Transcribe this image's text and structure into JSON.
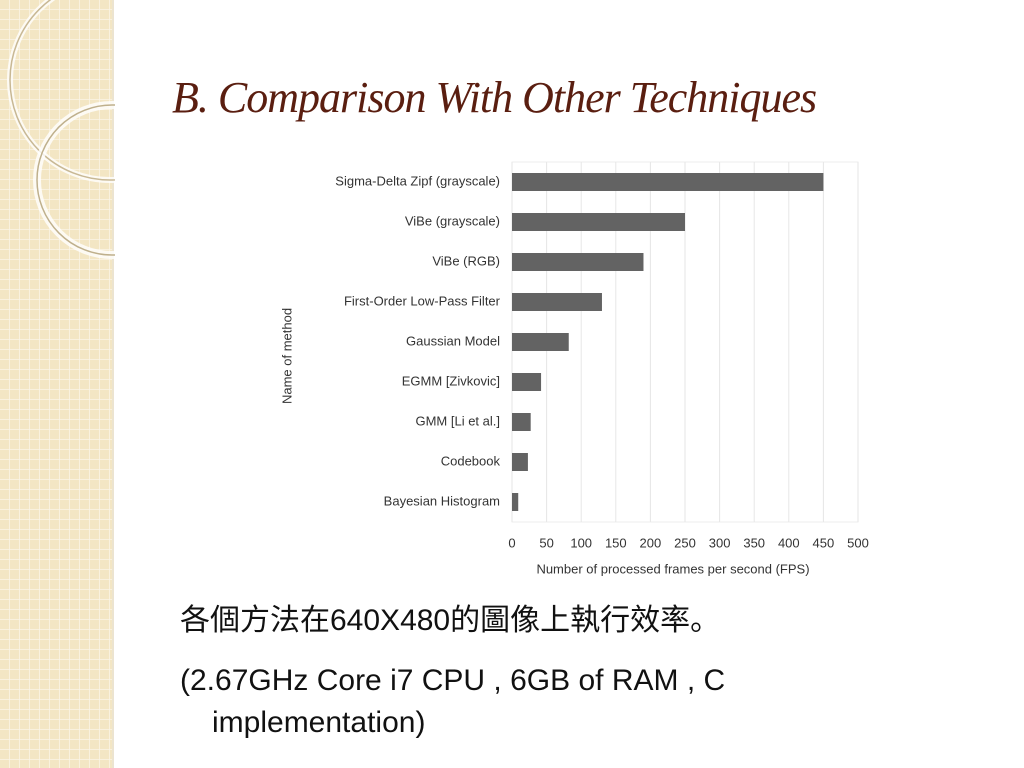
{
  "slide": {
    "title": "B. Comparison With Other Techniques",
    "lines": [
      "各個方法在640X480的圖像上執行效率。",
      "(2.67GHz Core i7 CPU , 6GB of RAM , C implementation)"
    ]
  },
  "chart_data": {
    "type": "hbar",
    "x_label": "Number of processed frames per second (FPS)",
    "y_label": "Name of method",
    "categories": [
      "Sigma-Delta Zipf (grayscale)",
      "ViBe (grayscale)",
      "ViBe (RGB)",
      "First-Order Low-Pass Filter",
      "Gaussian Model",
      "EGMM [Zivkovic]",
      "GMM [Li et al.]",
      "Codebook",
      "Bayesian Histogram"
    ],
    "values": [
      450,
      250,
      190,
      130,
      82,
      42,
      27,
      23,
      9
    ],
    "color": "#636363",
    "xlim": [
      0,
      500
    ],
    "xticks": [
      0,
      50,
      100,
      150,
      200,
      250,
      300,
      350,
      400,
      450,
      500
    ],
    "grid": true
  }
}
